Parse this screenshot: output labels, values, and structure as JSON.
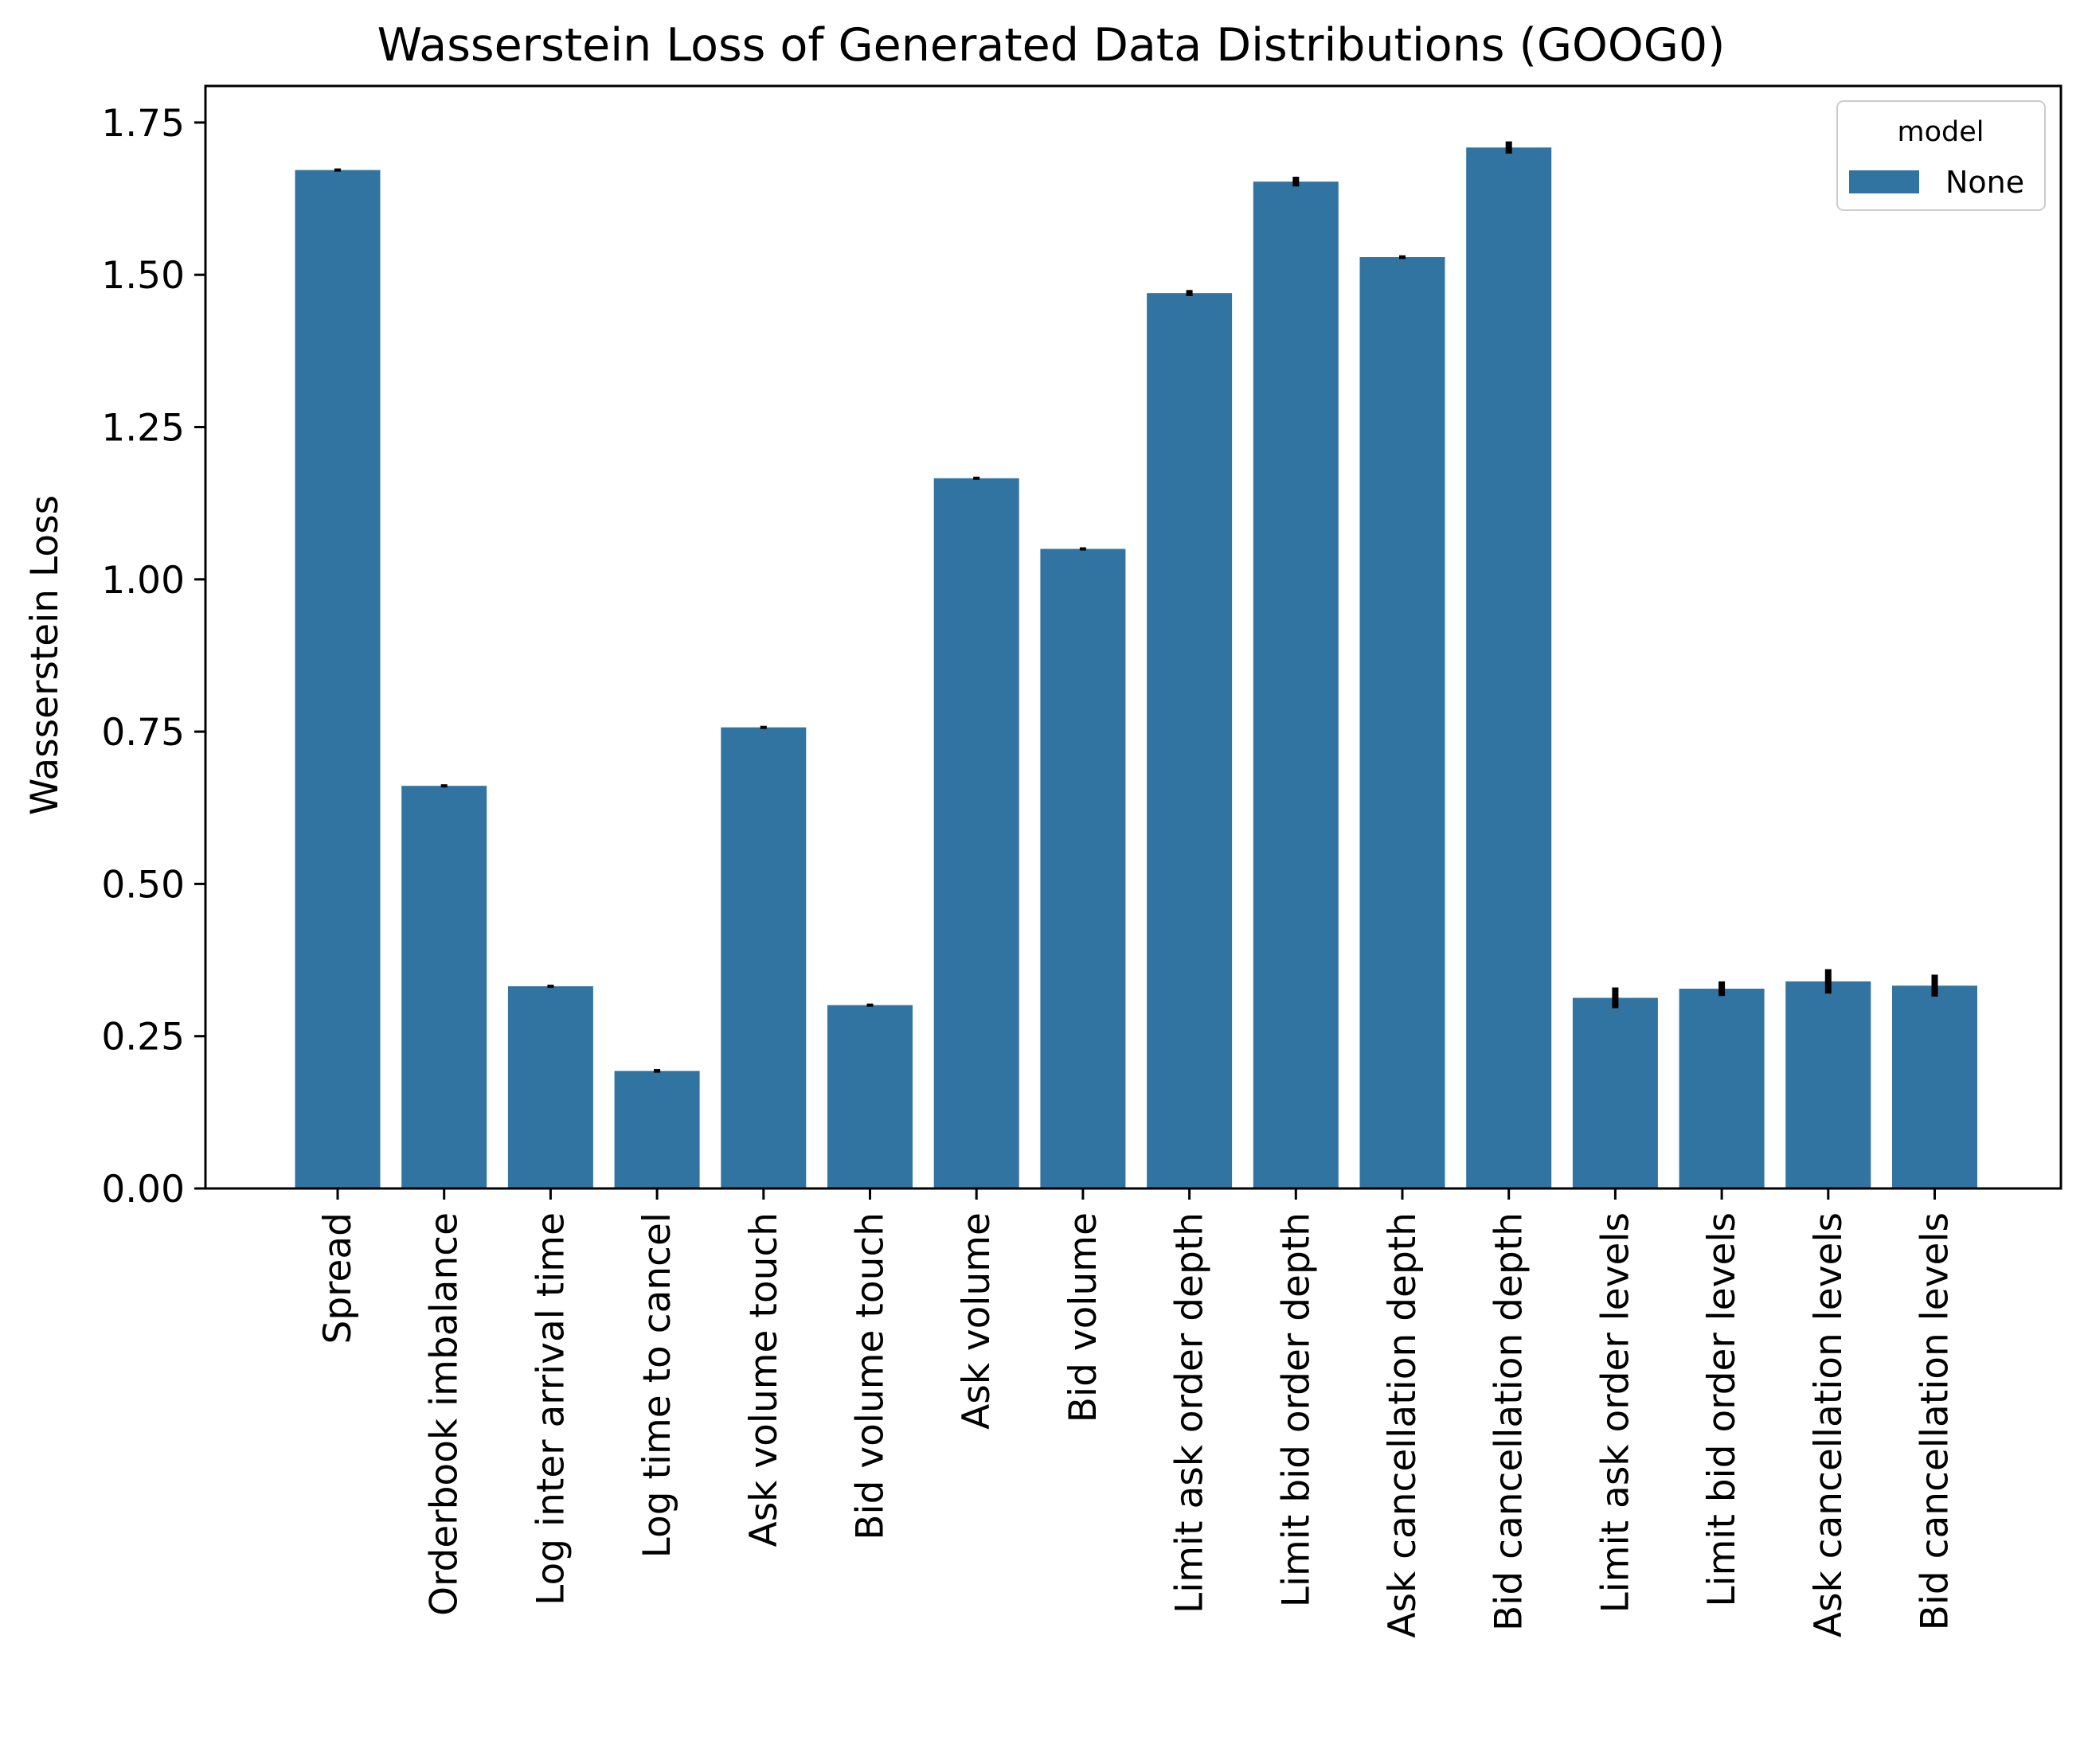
{
  "chart_data": {
    "type": "bar",
    "title": "Wasserstein Loss of Generated Data Distributions (GOOG0)",
    "xlabel": "",
    "ylabel": "Wasserstein Loss",
    "ylim": [
      0,
      1.81
    ],
    "yticks": [
      "0.00",
      "0.25",
      "0.50",
      "0.75",
      "1.00",
      "1.25",
      "1.50",
      "1.75"
    ],
    "grid": false,
    "legend": {
      "title": "model",
      "placement": "top-right",
      "entries": [
        "None"
      ]
    },
    "categories": [
      "Spread",
      "Orderbook imbalance",
      "Log inter arrival time",
      "Log time to cancel",
      "Ask volume touch",
      "Bid volume touch",
      "Ask volume",
      "Bid volume",
      "Limit ask order depth",
      "Limit bid order depth",
      "Ask cancellation depth",
      "Bid cancellation depth",
      "Limit ask order levels",
      "Limit bid order levels",
      "Ask cancellation levels",
      "Bid cancellation levels"
    ],
    "series": [
      {
        "name": "None",
        "color": "#3274a1",
        "values": [
          1.672,
          0.661,
          0.332,
          0.193,
          0.757,
          0.301,
          1.166,
          1.05,
          1.47,
          1.653,
          1.529,
          1.709,
          0.313,
          0.328,
          0.34,
          0.333
        ],
        "error": [
          0.002,
          0.002,
          0.002,
          0.003,
          0.002,
          0.002,
          0.002,
          0.002,
          0.005,
          0.008,
          0.003,
          0.01,
          0.017,
          0.012,
          0.02,
          0.018
        ]
      }
    ]
  }
}
